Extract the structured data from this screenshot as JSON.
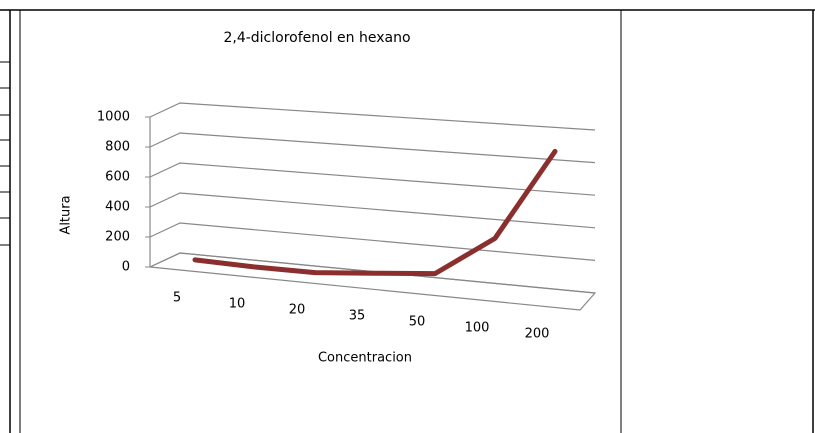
{
  "chart_data": {
    "type": "line",
    "title": "2,4-diclorofenol en hexano",
    "x_label": "Concentracion",
    "y_label": "Altura",
    "categories": [
      "5",
      "10",
      "20",
      "35",
      "50",
      "100",
      "200"
    ],
    "series": [
      {
        "name": "Altura",
        "color": "#8b2e2e",
        "values": [
          20,
          10,
          10,
          40,
          70,
          300,
          800
        ]
      }
    ],
    "ylim": [
      0,
      1000
    ],
    "yticks": [
      0,
      200,
      400,
      600,
      800,
      1000
    ],
    "grid": true
  }
}
